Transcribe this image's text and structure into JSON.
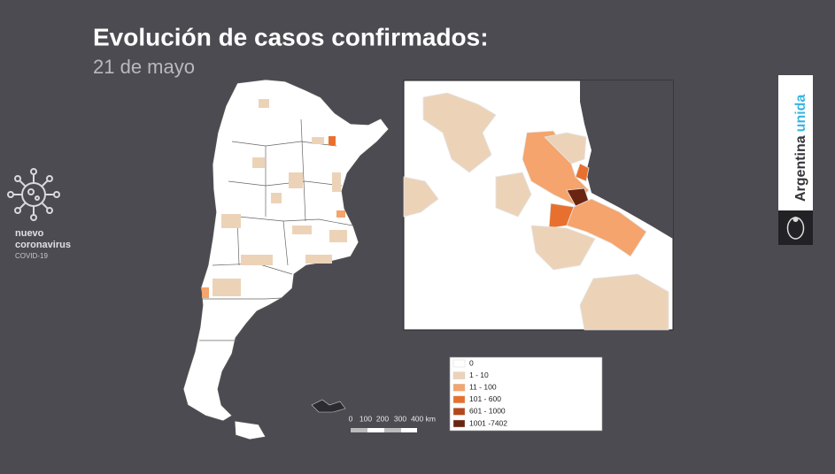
{
  "header": {
    "title": "Evolución de casos confirmados:",
    "subtitle": "21 de mayo"
  },
  "badge": {
    "line1": "nuevo",
    "line2": "coronavirus",
    "line3": "COVID-19"
  },
  "brand": {
    "word1": "Argentina",
    "word2": "unida"
  },
  "legend": {
    "items": [
      {
        "label": "0",
        "color": "#ffffff"
      },
      {
        "label": "1 - 10",
        "color": "#ecd3b8"
      },
      {
        "label": "11 - 100",
        "color": "#f4a46c"
      },
      {
        "label": "101 - 600",
        "color": "#e8702e"
      },
      {
        "label": "601 - 1000",
        "color": "#b5461b"
      },
      {
        "label": "1001 -7402",
        "color": "#6a2410"
      }
    ]
  },
  "scale_bar": {
    "labels": [
      "0",
      "100",
      "200",
      "300",
      "400 km"
    ]
  }
}
